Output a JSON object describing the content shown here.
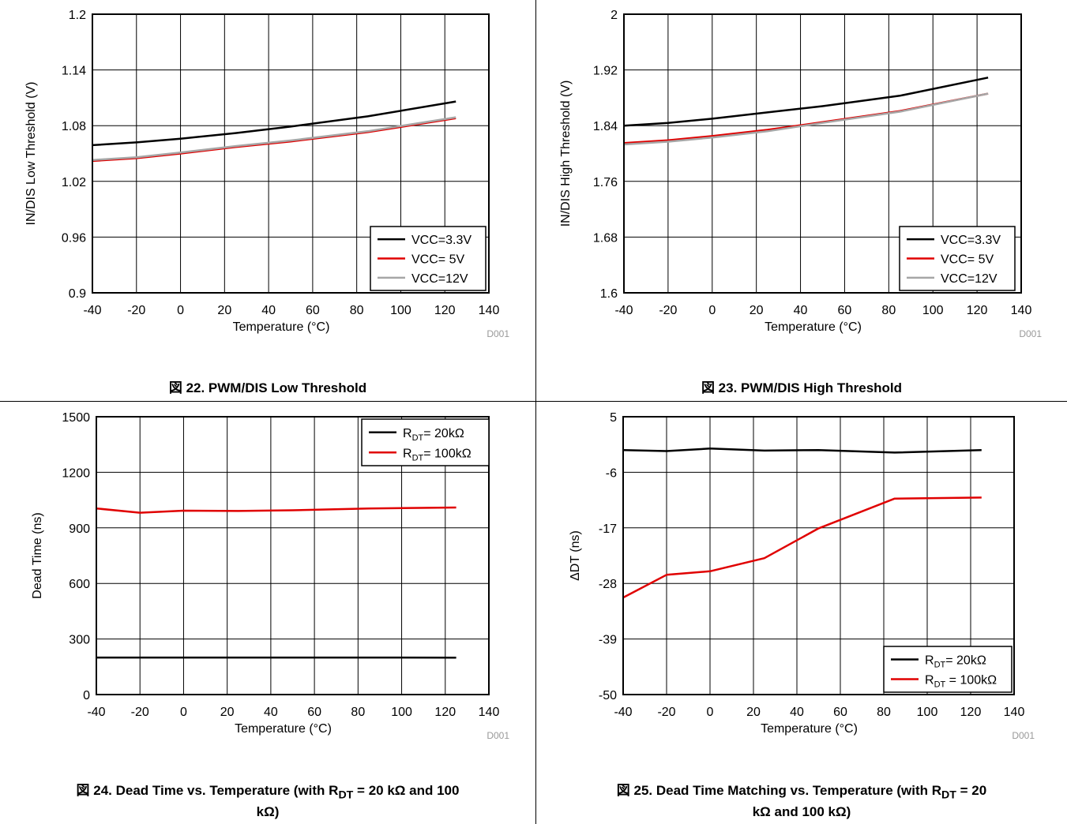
{
  "chart_data": [
    {
      "type": "line",
      "title": "",
      "xlabel": "Temperature (°C)",
      "ylabel": "IN/DIS Low Threshold (V)",
      "xlim": [
        -40,
        140
      ],
      "ylim": [
        0.9,
        1.2
      ],
      "xticks": [
        "-40",
        "-20",
        "0",
        "20",
        "40",
        "60",
        "80",
        "100",
        "120",
        "140"
      ],
      "yticks": [
        "0.9",
        "0.96",
        "1.02",
        "1.08",
        "1.14",
        "1.2"
      ],
      "grid": true,
      "legend_position": "bottom-right",
      "watermark": "D001",
      "caption": "図 22. PWM/DIS Low Threshold",
      "series": [
        {
          "label": "VCC=3.3V",
          "color": "#000000",
          "x": [
            -40,
            -20,
            0,
            25,
            50,
            85,
            125
          ],
          "y": [
            1.059,
            1.062,
            1.066,
            1.072,
            1.079,
            1.09,
            1.106
          ]
        },
        {
          "label": "VCC= 5V",
          "color": "#e00000",
          "x": [
            -40,
            -20,
            0,
            25,
            50,
            85,
            125
          ],
          "y": [
            1.042,
            1.045,
            1.05,
            1.057,
            1.063,
            1.073,
            1.088
          ]
        },
        {
          "label": "VCC=12V",
          "color": "#a6a6a6",
          "x": [
            -40,
            -20,
            0,
            25,
            50,
            85,
            125
          ],
          "y": [
            1.043,
            1.046,
            1.051,
            1.058,
            1.064,
            1.074,
            1.089
          ]
        }
      ]
    },
    {
      "type": "line",
      "title": "",
      "xlabel": "Temperature (°C)",
      "ylabel": "IN/DIS High Threshold (V)",
      "xlim": [
        -40,
        140
      ],
      "ylim": [
        1.6,
        2.0
      ],
      "xticks": [
        "-40",
        "-20",
        "0",
        "20",
        "40",
        "60",
        "80",
        "100",
        "120",
        "140"
      ],
      "yticks": [
        "1.6",
        "1.68",
        "1.76",
        "1.84",
        "1.92",
        "2"
      ],
      "grid": true,
      "legend_position": "bottom-right",
      "watermark": "D001",
      "caption": "図 23. PWM/DIS High Threshold",
      "series": [
        {
          "label": "VCC=3.3V",
          "color": "#000000",
          "x": [
            -40,
            -20,
            0,
            25,
            50,
            85,
            125
          ],
          "y": [
            1.84,
            1.844,
            1.85,
            1.859,
            1.868,
            1.883,
            1.909
          ]
        },
        {
          "label": "VCC= 5V",
          "color": "#e00000",
          "x": [
            -40,
            -20,
            0,
            25,
            50,
            85,
            125
          ],
          "y": [
            1.815,
            1.819,
            1.825,
            1.834,
            1.845,
            1.861,
            1.886
          ]
        },
        {
          "label": "VCC=12V",
          "color": "#a6a6a6",
          "x": [
            -40,
            -20,
            0,
            25,
            50,
            85,
            125
          ],
          "y": [
            1.813,
            1.817,
            1.823,
            1.832,
            1.844,
            1.86,
            1.886
          ]
        }
      ]
    },
    {
      "type": "line",
      "title": "",
      "xlabel": "Temperature (°C)",
      "ylabel": "Dead Time (ns)",
      "xlim": [
        -40,
        140
      ],
      "ylim": [
        0,
        1500
      ],
      "xticks": [
        "-40",
        "-20",
        "0",
        "20",
        "40",
        "60",
        "80",
        "100",
        "120",
        "140"
      ],
      "yticks": [
        "0",
        "300",
        "600",
        "900",
        "1200",
        "1500"
      ],
      "grid": true,
      "legend_position": "top-right",
      "watermark": "D001",
      "caption": "図 24. Dead Time vs. Temperature (with R_DT = 20 kΩ and 100 kΩ)",
      "caption_line1_pre": "図 24. Dead Time vs. Temperature (with R",
      "caption_line1_sub": "DT",
      "caption_line1_post": " = 20 kΩ and 100",
      "caption_line2": "kΩ)",
      "series": [
        {
          "label": "R_DT= 20kΩ",
          "label_main": "R",
          "label_sub": "DT",
          "label_rest": "= 20kΩ",
          "color": "#000000",
          "x": [
            -40,
            -20,
            0,
            25,
            50,
            85,
            125
          ],
          "y": [
            200,
            200,
            200,
            200,
            200,
            200,
            199
          ]
        },
        {
          "label": "R_DT= 100kΩ",
          "label_main": "R",
          "label_sub": "DT",
          "label_rest": "= 100kΩ",
          "color": "#e00000",
          "x": [
            -40,
            -20,
            0,
            25,
            50,
            85,
            125
          ],
          "y": [
            1005,
            982,
            993,
            991,
            995,
            1005,
            1010
          ]
        }
      ]
    },
    {
      "type": "line",
      "title": "",
      "xlabel": "Temperature (°C)",
      "ylabel": "ΔDT (ns)",
      "xlim": [
        -40,
        140
      ],
      "ylim": [
        -50,
        5
      ],
      "xticks": [
        "-40",
        "-20",
        "0",
        "20",
        "40",
        "60",
        "80",
        "100",
        "120",
        "140"
      ],
      "yticks": [
        "-50",
        "-39",
        "-28",
        "-17",
        "-6",
        "5"
      ],
      "grid": true,
      "legend_position": "bottom-right",
      "watermark": "D001",
      "caption": "図 25. Dead Time Matching vs. Temperature (with R_DT = 20 kΩ and 100 kΩ)",
      "caption_line1_pre": "図 25. Dead Time Matching vs. Temperature (with R",
      "caption_line1_sub": "DT",
      "caption_line1_post": " = 20",
      "caption_line2": "kΩ and 100 kΩ)",
      "series": [
        {
          "label": "R_DT= 20kΩ",
          "label_main": "R",
          "label_sub": "DT",
          "label_rest": "= 20kΩ",
          "color": "#000000",
          "x": [
            -40,
            -20,
            0,
            25,
            50,
            85,
            125
          ],
          "y": [
            -1.6,
            -1.8,
            -1.3,
            -1.7,
            -1.6,
            -2.1,
            -1.6
          ]
        },
        {
          "label": "R_DT = 100kΩ",
          "label_main": "R",
          "label_sub": "DT",
          "label_rest": " = 100kΩ",
          "color": "#e00000",
          "x": [
            -40,
            -20,
            0,
            25,
            50,
            85,
            125
          ],
          "y": [
            -30.8,
            -26.3,
            -25.6,
            -23.0,
            -17.1,
            -11.2,
            -11.0
          ]
        }
      ]
    }
  ]
}
